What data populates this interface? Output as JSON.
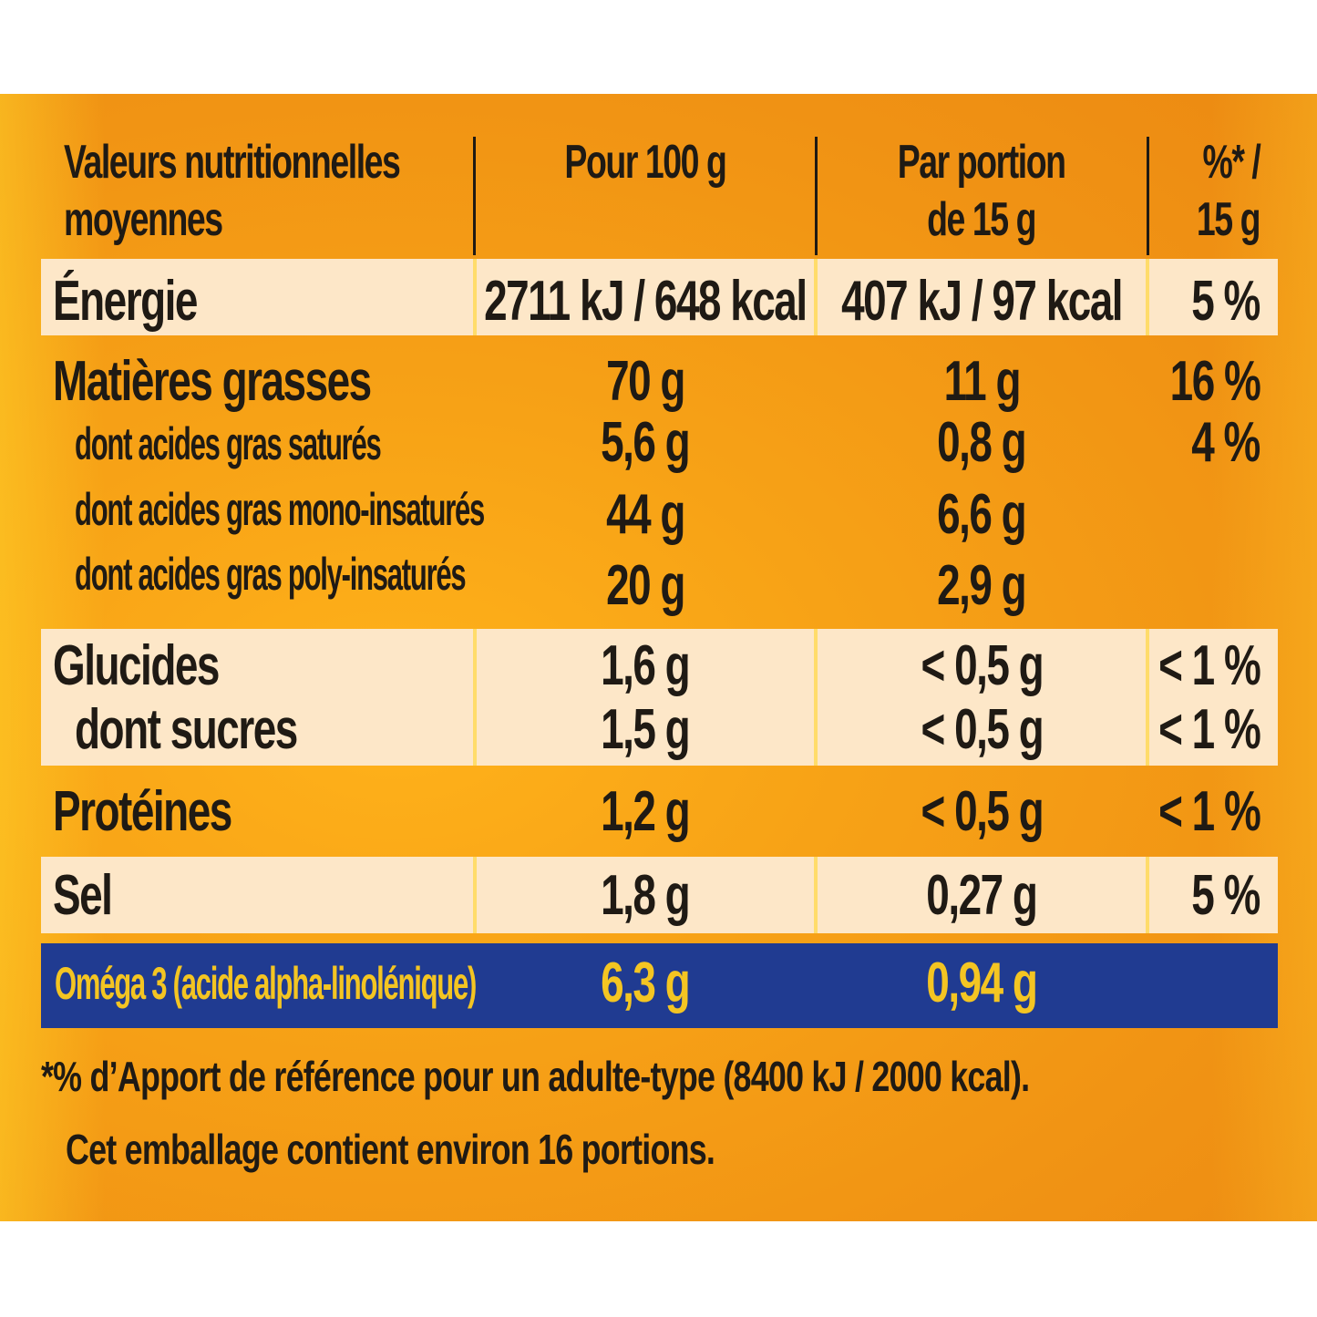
{
  "table": {
    "header": {
      "col1_line1": "Valeurs nutritionnelles",
      "col1_line2": "moyennes",
      "col2": "Pour 100 g",
      "col3_line1": "Par portion",
      "col3_line2": "de 15 g",
      "col4_line1": "%* /",
      "col4_line2": "15 g"
    },
    "energy": {
      "label": "Énergie",
      "per100": "2711 kJ / 648 kcal",
      "portion": "407 kJ / 97 kcal",
      "pct": "5 %"
    },
    "fat": {
      "label": "Matières grasses",
      "per100": "70 g",
      "portion": "11 g",
      "pct": "16 %"
    },
    "sat": {
      "label": "dont acides gras saturés",
      "per100": "5,6 g",
      "portion": "0,8 g",
      "pct": "4 %"
    },
    "mono": {
      "label": "dont acides gras mono-insaturés",
      "per100": "44 g",
      "portion": "6,6 g"
    },
    "poly": {
      "label": "dont acides gras poly-insaturés",
      "per100": "20 g",
      "portion": "2,9 g"
    },
    "carbs": {
      "label": "Glucides",
      "per100": "1,6 g",
      "portion": "< 0,5 g",
      "pct": "< 1 %"
    },
    "sugars": {
      "label": "dont sucres",
      "per100": "1,5 g",
      "portion": "< 0,5 g",
      "pct": "< 1 %"
    },
    "protein": {
      "label": "Protéines",
      "per100": "1,2 g",
      "portion": "< 0,5 g",
      "pct": "< 1 %"
    },
    "salt": {
      "label": "Sel",
      "per100": "1,8 g",
      "portion": "0,27 g",
      "pct": "5 %"
    },
    "omega": {
      "label": "Oméga 3 (acide alpha-linolénique)",
      "per100": "6,3 g",
      "portion": "0,94 g"
    }
  },
  "footnote": {
    "line1": "*% d’Apport de référence pour un adulte-type (8400 kJ / 2000 kcal).",
    "line2": "Cet emballage contient environ 16 portions."
  },
  "colors": {
    "panel": "#f7a216",
    "band_light": "#fde7c8",
    "omega_band": "#203b91",
    "omega_text": "#f4c522",
    "text": "#1f1a14"
  }
}
